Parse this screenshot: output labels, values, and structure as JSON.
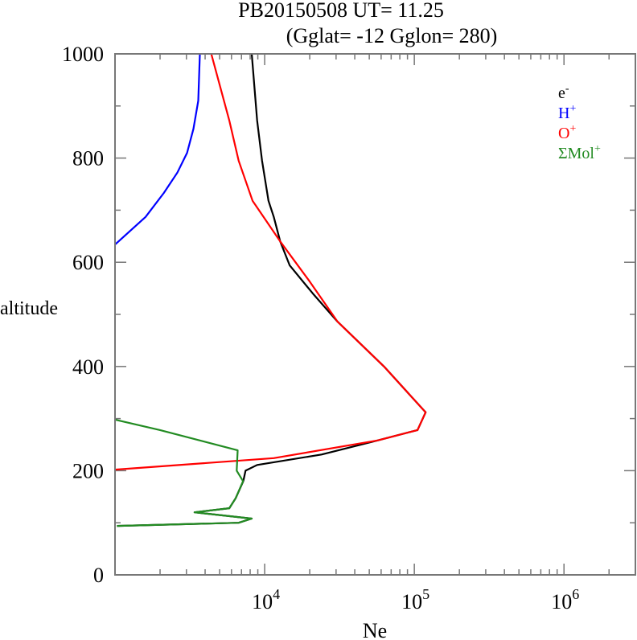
{
  "chart_data": {
    "type": "line",
    "title": "PB20150508   UT=  11.25",
    "subtitle": "(Gglat= -12   Gglon=  280)",
    "xlabel": "Ne",
    "ylabel": "altitude",
    "xscale": "log",
    "xlim": [
      1000,
      3000000
    ],
    "ylim": [
      0,
      1000
    ],
    "yticks": [
      0,
      200,
      400,
      600,
      800,
      1000
    ],
    "xticks": [
      {
        "base": "10",
        "exp": "4",
        "value": 10000
      },
      {
        "base": "10",
        "exp": "5",
        "value": 100000
      },
      {
        "base": "10",
        "exp": "6",
        "value": 1000000
      }
    ],
    "legend_position": "top-right",
    "series": [
      {
        "name": "e",
        "sup": "-",
        "color": "#000000",
        "points": [
          [
            8200,
            1000
          ],
          [
            8900,
            872
          ],
          [
            9600,
            795
          ],
          [
            10600,
            718
          ],
          [
            11500,
            687
          ],
          [
            12700,
            640
          ],
          [
            14700,
            594
          ],
          [
            21000,
            540
          ],
          [
            30700,
            486
          ],
          [
            62700,
            400
          ],
          [
            119000,
            312
          ],
          [
            105000,
            278
          ],
          [
            56800,
            258
          ],
          [
            24000,
            231
          ],
          [
            8900,
            211
          ],
          [
            7450,
            200
          ],
          [
            7200,
            180
          ],
          [
            6400,
            147
          ],
          [
            5800,
            128
          ],
          [
            3400,
            120
          ],
          [
            8200,
            108
          ],
          [
            6700,
            100
          ],
          [
            1030,
            94
          ]
        ]
      },
      {
        "name": "H",
        "sup": "+",
        "color": "#0000ff",
        "points": [
          [
            3690,
            1000
          ],
          [
            3600,
            910
          ],
          [
            3340,
            856
          ],
          [
            3030,
            810
          ],
          [
            2610,
            772
          ],
          [
            2120,
            733
          ],
          [
            1600,
            687
          ],
          [
            1000,
            634
          ]
        ]
      },
      {
        "name": "O",
        "sup": "+",
        "color": "#ff0000",
        "points": [
          [
            4400,
            1000
          ],
          [
            5800,
            872
          ],
          [
            6700,
            795
          ],
          [
            8300,
            718
          ],
          [
            12700,
            640
          ],
          [
            20000,
            563
          ],
          [
            30700,
            486
          ],
          [
            62700,
            400
          ],
          [
            119000,
            312
          ],
          [
            105000,
            278
          ],
          [
            56800,
            258
          ],
          [
            11500,
            224
          ],
          [
            1000,
            202
          ]
        ]
      },
      {
        "name": "ΣMol",
        "sup": "+",
        "color": "#228b22",
        "points": [
          [
            1000,
            298
          ],
          [
            2000,
            278
          ],
          [
            6600,
            239
          ],
          [
            6500,
            200
          ],
          [
            7170,
            180
          ],
          [
            6400,
            147
          ],
          [
            5800,
            128
          ],
          [
            3400,
            120
          ],
          [
            8200,
            108
          ],
          [
            6700,
            100
          ],
          [
            1030,
            94
          ]
        ]
      }
    ]
  }
}
